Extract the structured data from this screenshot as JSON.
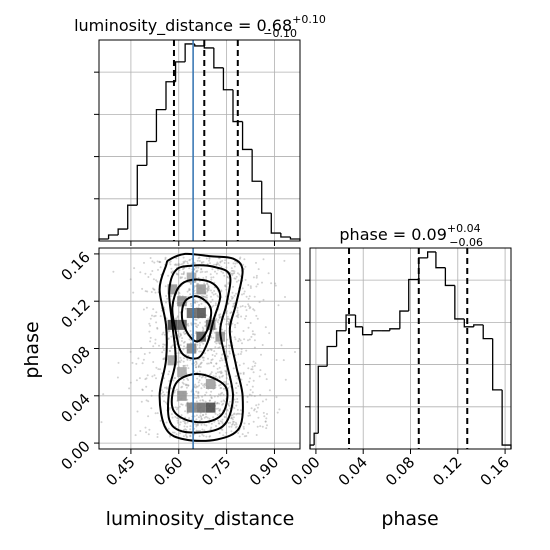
{
  "colors": {
    "truth": "#3d7ab5",
    "hist": "#000000",
    "grid": "#b0b0b0",
    "density_light": "#dcdcdc",
    "density_dark": "#333333",
    "scatter": "#9a9a9a"
  },
  "chart_data": [
    {
      "type": "histogram",
      "panel": "luminosity_distance",
      "title": {
        "label": "luminosity_distance = 0.68",
        "plus": "+0.10",
        "minus": "−0.10"
      },
      "xlim": [
        0.35,
        0.98
      ],
      "ylim": [
        0,
        1.0
      ],
      "grid": true,
      "bin_edges": [
        0.35,
        0.38,
        0.41,
        0.44,
        0.47,
        0.5,
        0.53,
        0.56,
        0.59,
        0.62,
        0.65,
        0.68,
        0.71,
        0.74,
        0.77,
        0.8,
        0.83,
        0.86,
        0.89,
        0.92,
        0.95,
        0.98
      ],
      "counts": [
        0.01,
        0.03,
        0.06,
        0.18,
        0.38,
        0.5,
        0.66,
        0.8,
        0.9,
        0.99,
        0.98,
        0.97,
        0.87,
        0.76,
        0.6,
        0.46,
        0.3,
        0.14,
        0.04,
        0.02,
        0.01
      ],
      "quantiles": [
        0.585,
        0.68,
        0.785
      ],
      "truth": 0.645
    },
    {
      "type": "histogram",
      "panel": "phase",
      "title": {
        "label": "phase = 0.09",
        "plus": "+0.04",
        "minus": "−0.06"
      },
      "xlim": [
        -0.005,
        0.165
      ],
      "xlabel": "phase",
      "xticks": [
        "0.00",
        "0.04",
        "0.08",
        "0.12",
        "0.16"
      ],
      "xtick_values": [
        0.0,
        0.04,
        0.08,
        0.12,
        0.16
      ],
      "ylim": [
        0,
        1.0
      ],
      "grid": true,
      "bin_edges": [
        -0.005,
        -0.0015,
        0.002,
        0.0095,
        0.0175,
        0.0255,
        0.0335,
        0.0395,
        0.0475,
        0.0555,
        0.0625,
        0.071,
        0.0785,
        0.087,
        0.0945,
        0.1015,
        0.1095,
        0.1175,
        0.1255,
        0.1335,
        0.1415,
        0.1495,
        0.1575,
        0.165
      ],
      "counts": [
        0.02,
        0.08,
        0.42,
        0.52,
        0.6,
        0.68,
        0.62,
        0.58,
        0.6,
        0.6,
        0.61,
        0.7,
        0.86,
        0.97,
        1.0,
        0.92,
        0.83,
        0.66,
        0.62,
        0.63,
        0.56,
        0.3,
        0.02
      ],
      "quantiles": [
        0.028,
        0.087,
        0.128
      ],
      "truth": null
    },
    {
      "type": "scatter",
      "panel": "joint",
      "xlabel": "luminosity_distance",
      "ylabel": "phase",
      "xlim": [
        0.35,
        0.98
      ],
      "ylim": [
        -0.005,
        0.165
      ],
      "xticks": [
        "0.45",
        "0.60",
        "0.75",
        "0.90"
      ],
      "xtick_values": [
        0.45,
        0.6,
        0.75,
        0.9
      ],
      "yticks": [
        "0.00",
        "0.04",
        "0.08",
        "0.12",
        "0.16"
      ],
      "ytick_values": [
        0.0,
        0.04,
        0.08,
        0.12,
        0.16
      ],
      "grid": true,
      "truth_x": 0.645,
      "points_description": "dense sample cloud centered near luminosity_distance 0.68, phase spanning 0.00-0.16",
      "density_cells": [
        {
          "x": 0.58,
          "y": 0.1,
          "v": 0.9
        },
        {
          "x": 0.61,
          "y": 0.1,
          "v": 0.75
        },
        {
          "x": 0.64,
          "y": 0.11,
          "v": 0.7
        },
        {
          "x": 0.67,
          "y": 0.11,
          "v": 0.8
        },
        {
          "x": 0.67,
          "y": 0.09,
          "v": 0.75
        },
        {
          "x": 0.7,
          "y": 0.1,
          "v": 0.6
        },
        {
          "x": 0.64,
          "y": 0.08,
          "v": 0.55
        },
        {
          "x": 0.61,
          "y": 0.12,
          "v": 0.5
        },
        {
          "x": 0.7,
          "y": 0.03,
          "v": 0.85
        },
        {
          "x": 0.67,
          "y": 0.03,
          "v": 0.65
        },
        {
          "x": 0.64,
          "y": 0.03,
          "v": 0.55
        },
        {
          "x": 0.61,
          "y": 0.04,
          "v": 0.45
        },
        {
          "x": 0.7,
          "y": 0.05,
          "v": 0.4
        },
        {
          "x": 0.58,
          "y": 0.13,
          "v": 0.45
        },
        {
          "x": 0.67,
          "y": 0.13,
          "v": 0.45
        },
        {
          "x": 0.73,
          "y": 0.09,
          "v": 0.45
        },
        {
          "x": 0.58,
          "y": 0.07,
          "v": 0.4
        },
        {
          "x": 0.64,
          "y": 0.14,
          "v": 0.35
        },
        {
          "x": 0.61,
          "y": 0.06,
          "v": 0.35
        }
      ],
      "contours": [
        [
          [
            0.57,
            0.155
          ],
          [
            0.62,
            0.16
          ],
          [
            0.7,
            0.158
          ],
          [
            0.77,
            0.156
          ],
          [
            0.8,
            0.146
          ],
          [
            0.78,
            0.118
          ],
          [
            0.76,
            0.095
          ],
          [
            0.78,
            0.065
          ],
          [
            0.8,
            0.04
          ],
          [
            0.79,
            0.013
          ],
          [
            0.72,
            0.003
          ],
          [
            0.62,
            0.003
          ],
          [
            0.56,
            0.012
          ],
          [
            0.54,
            0.04
          ],
          [
            0.56,
            0.07
          ],
          [
            0.56,
            0.1
          ],
          [
            0.54,
            0.13
          ],
          [
            0.56,
            0.15
          ]
        ],
        [
          [
            0.59,
            0.146
          ],
          [
            0.64,
            0.15
          ],
          [
            0.71,
            0.149
          ],
          [
            0.76,
            0.142
          ],
          [
            0.75,
            0.118
          ],
          [
            0.73,
            0.095
          ],
          [
            0.75,
            0.068
          ],
          [
            0.77,
            0.04
          ],
          [
            0.75,
            0.018
          ],
          [
            0.7,
            0.01
          ],
          [
            0.61,
            0.01
          ],
          [
            0.57,
            0.02
          ],
          [
            0.57,
            0.045
          ],
          [
            0.59,
            0.07
          ],
          [
            0.58,
            0.1
          ],
          [
            0.57,
            0.128
          ]
        ],
        [
          [
            0.6,
            0.132
          ],
          [
            0.64,
            0.138
          ],
          [
            0.7,
            0.136
          ],
          [
            0.73,
            0.125
          ],
          [
            0.71,
            0.105
          ],
          [
            0.69,
            0.085
          ],
          [
            0.66,
            0.072
          ],
          [
            0.61,
            0.076
          ],
          [
            0.59,
            0.095
          ],
          [
            0.58,
            0.115
          ]
        ],
        [
          [
            0.62,
            0.12
          ],
          [
            0.66,
            0.124
          ],
          [
            0.7,
            0.114
          ],
          [
            0.69,
            0.096
          ],
          [
            0.66,
            0.086
          ],
          [
            0.63,
            0.092
          ],
          [
            0.61,
            0.106
          ]
        ],
        [
          [
            0.59,
            0.05
          ],
          [
            0.64,
            0.058
          ],
          [
            0.7,
            0.056
          ],
          [
            0.75,
            0.046
          ],
          [
            0.74,
            0.026
          ],
          [
            0.69,
            0.018
          ],
          [
            0.62,
            0.02
          ],
          [
            0.58,
            0.03
          ]
        ]
      ]
    }
  ]
}
